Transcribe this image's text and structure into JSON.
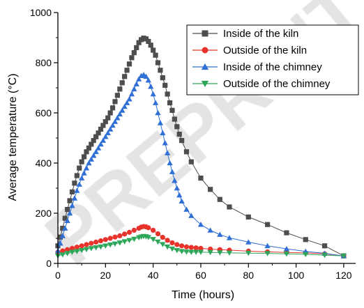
{
  "chart_data": {
    "type": "line",
    "xlabel": "Time (hours)",
    "ylabel": "Average temperature (°C)",
    "xlim": [
      0,
      125
    ],
    "ylim": [
      0,
      1000
    ],
    "x_ticks": [
      0,
      20,
      40,
      60,
      80,
      100,
      120
    ],
    "y_ticks": [
      0,
      200,
      400,
      600,
      800,
      1000
    ],
    "grid": false,
    "legend_position": "top-right",
    "series": [
      {
        "name": "Inside of the kiln",
        "color": "#4d4d4d",
        "marker": "square",
        "points": [
          [
            0,
            70
          ],
          [
            1,
            105
          ],
          [
            2,
            140
          ],
          [
            3,
            180
          ],
          [
            4,
            215
          ],
          [
            5,
            250
          ],
          [
            6,
            285
          ],
          [
            7,
            320
          ],
          [
            8,
            350
          ],
          [
            9,
            380
          ],
          [
            10,
            405
          ],
          [
            11,
            425
          ],
          [
            12,
            445
          ],
          [
            13,
            460
          ],
          [
            14,
            475
          ],
          [
            15,
            490
          ],
          [
            16,
            505
          ],
          [
            17,
            520
          ],
          [
            18,
            535
          ],
          [
            19,
            550
          ],
          [
            20,
            565
          ],
          [
            21,
            580
          ],
          [
            22,
            600
          ],
          [
            23,
            620
          ],
          [
            24,
            645
          ],
          [
            25,
            670
          ],
          [
            26,
            695
          ],
          [
            27,
            720
          ],
          [
            28,
            745
          ],
          [
            29,
            770
          ],
          [
            30,
            795
          ],
          [
            31,
            820
          ],
          [
            32,
            840
          ],
          [
            33,
            860
          ],
          [
            34,
            880
          ],
          [
            35,
            892
          ],
          [
            36,
            898
          ],
          [
            37,
            895
          ],
          [
            38,
            885
          ],
          [
            39,
            870
          ],
          [
            40,
            850
          ],
          [
            41,
            830
          ],
          [
            42,
            800
          ],
          [
            43,
            770
          ],
          [
            44,
            740
          ],
          [
            45,
            710
          ],
          [
            46,
            675
          ],
          [
            47,
            640
          ],
          [
            48,
            610
          ],
          [
            49,
            575
          ],
          [
            50,
            545
          ],
          [
            51,
            515
          ],
          [
            52,
            490
          ],
          [
            54,
            445
          ],
          [
            56,
            405
          ],
          [
            60,
            340
          ],
          [
            64,
            295
          ],
          [
            68,
            255
          ],
          [
            72,
            225
          ],
          [
            80,
            185
          ],
          [
            88,
            155
          ],
          [
            96,
            122
          ],
          [
            104,
            95
          ],
          [
            112,
            70
          ],
          [
            120,
            30
          ]
        ]
      },
      {
        "name": "Outside of the kiln",
        "color": "#e8322c",
        "marker": "circle",
        "points": [
          [
            0,
            45
          ],
          [
            2,
            50
          ],
          [
            4,
            55
          ],
          [
            6,
            60
          ],
          [
            8,
            65
          ],
          [
            10,
            70
          ],
          [
            12,
            75
          ],
          [
            14,
            80
          ],
          [
            16,
            85
          ],
          [
            18,
            90
          ],
          [
            20,
            95
          ],
          [
            22,
            100
          ],
          [
            24,
            105
          ],
          [
            26,
            110
          ],
          [
            28,
            117
          ],
          [
            30,
            124
          ],
          [
            32,
            132
          ],
          [
            34,
            140
          ],
          [
            35,
            145
          ],
          [
            36,
            147
          ],
          [
            37,
            146
          ],
          [
            38,
            142
          ],
          [
            40,
            132
          ],
          [
            42,
            118
          ],
          [
            44,
            104
          ],
          [
            46,
            92
          ],
          [
            48,
            82
          ],
          [
            50,
            75
          ],
          [
            52,
            70
          ],
          [
            54,
            66
          ],
          [
            56,
            64
          ],
          [
            58,
            62
          ],
          [
            60,
            60
          ],
          [
            64,
            57
          ],
          [
            68,
            55
          ],
          [
            72,
            53
          ],
          [
            80,
            49
          ],
          [
            88,
            46
          ],
          [
            96,
            44
          ],
          [
            104,
            42
          ],
          [
            112,
            38
          ],
          [
            120,
            30
          ]
        ]
      },
      {
        "name": "Inside of the chimney",
        "color": "#2f6fd6",
        "marker": "triangle-up",
        "points": [
          [
            0,
            50
          ],
          [
            1,
            80
          ],
          [
            2,
            110
          ],
          [
            3,
            140
          ],
          [
            4,
            170
          ],
          [
            5,
            200
          ],
          [
            6,
            230
          ],
          [
            7,
            260
          ],
          [
            8,
            290
          ],
          [
            9,
            315
          ],
          [
            10,
            340
          ],
          [
            11,
            360
          ],
          [
            12,
            380
          ],
          [
            13,
            400
          ],
          [
            14,
            415
          ],
          [
            15,
            430
          ],
          [
            16,
            445
          ],
          [
            17,
            460
          ],
          [
            18,
            475
          ],
          [
            19,
            490
          ],
          [
            20,
            505
          ],
          [
            21,
            520
          ],
          [
            22,
            535
          ],
          [
            23,
            550
          ],
          [
            24,
            565
          ],
          [
            25,
            580
          ],
          [
            26,
            595
          ],
          [
            27,
            610
          ],
          [
            28,
            625
          ],
          [
            29,
            640
          ],
          [
            30,
            655
          ],
          [
            31,
            675
          ],
          [
            32,
            695
          ],
          [
            33,
            715
          ],
          [
            34,
            735
          ],
          [
            35,
            748
          ],
          [
            36,
            752
          ],
          [
            37,
            745
          ],
          [
            38,
            730
          ],
          [
            39,
            705
          ],
          [
            40,
            675
          ],
          [
            41,
            640
          ],
          [
            42,
            600
          ],
          [
            43,
            560
          ],
          [
            44,
            520
          ],
          [
            45,
            480
          ],
          [
            46,
            440
          ],
          [
            47,
            400
          ],
          [
            48,
            365
          ],
          [
            49,
            330
          ],
          [
            50,
            300
          ],
          [
            51,
            272
          ],
          [
            52,
            248
          ],
          [
            54,
            215
          ],
          [
            56,
            190
          ],
          [
            60,
            155
          ],
          [
            64,
            132
          ],
          [
            68,
            115
          ],
          [
            72,
            102
          ],
          [
            80,
            85
          ],
          [
            88,
            70
          ],
          [
            96,
            58
          ],
          [
            104,
            48
          ],
          [
            112,
            40
          ],
          [
            120,
            30
          ]
        ]
      },
      {
        "name": "Outside of the chimney",
        "color": "#2ea65a",
        "marker": "triangle-down",
        "points": [
          [
            0,
            30
          ],
          [
            2,
            35
          ],
          [
            4,
            40
          ],
          [
            6,
            45
          ],
          [
            8,
            48
          ],
          [
            10,
            52
          ],
          [
            12,
            56
          ],
          [
            14,
            60
          ],
          [
            16,
            63
          ],
          [
            18,
            66
          ],
          [
            20,
            70
          ],
          [
            22,
            74
          ],
          [
            24,
            78
          ],
          [
            26,
            82
          ],
          [
            28,
            87
          ],
          [
            30,
            92
          ],
          [
            32,
            97
          ],
          [
            34,
            103
          ],
          [
            35,
            106
          ],
          [
            36,
            108
          ],
          [
            37,
            107
          ],
          [
            38,
            104
          ],
          [
            40,
            96
          ],
          [
            42,
            86
          ],
          [
            44,
            76
          ],
          [
            46,
            66
          ],
          [
            48,
            58
          ],
          [
            50,
            52
          ],
          [
            52,
            48
          ],
          [
            54,
            46
          ],
          [
            56,
            45
          ],
          [
            58,
            45
          ],
          [
            60,
            45
          ],
          [
            64,
            44
          ],
          [
            68,
            43
          ],
          [
            72,
            42
          ],
          [
            80,
            41
          ],
          [
            88,
            40
          ],
          [
            96,
            38
          ],
          [
            104,
            36
          ],
          [
            112,
            33
          ],
          [
            120,
            30
          ]
        ]
      }
    ]
  }
}
